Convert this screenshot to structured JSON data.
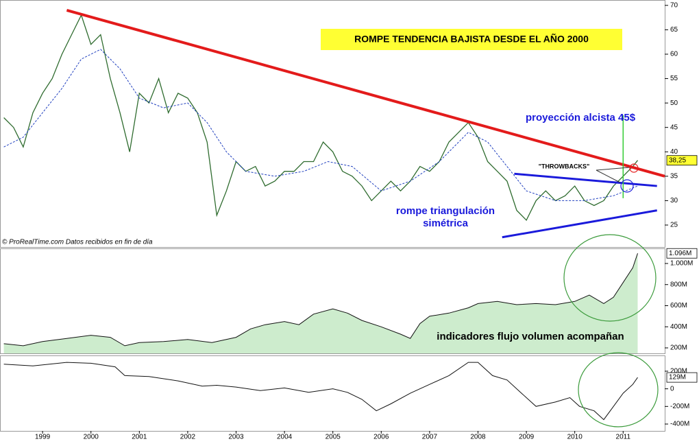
{
  "chart_data": [
    {
      "type": "line",
      "title": "ROMPE TENDENCIA BAJISTA DESDE EL AÑO 2000",
      "source": "© ProRealTime.com  Datos recibidos en fin de día",
      "xlim": [
        1998.12,
        2011.86
      ],
      "ylim": [
        20.5,
        71.1
      ],
      "yticks": [
        25,
        30,
        35,
        40,
        45,
        50,
        55,
        60,
        65,
        70
      ],
      "last_value": {
        "value": 38.25,
        "label": "38,25"
      },
      "series": [
        {
          "color": "#2e6b2e",
          "x": [
            1998.2,
            1998.4,
            1998.6,
            1998.8,
            1999.0,
            1999.2,
            1999.4,
            1999.6,
            1999.8,
            2000.0,
            2000.2,
            2000.4,
            2000.6,
            2000.8,
            2001.0,
            2001.2,
            2001.4,
            2001.6,
            2001.8,
            2002.0,
            2002.2,
            2002.4,
            2002.6,
            2002.8,
            2003.0,
            2003.2,
            2003.4,
            2003.6,
            2003.8,
            2004.0,
            2004.2,
            2004.4,
            2004.6,
            2004.8,
            2005.0,
            2005.2,
            2005.4,
            2005.6,
            2005.8,
            2006.0,
            2006.2,
            2006.4,
            2006.6,
            2006.8,
            2007.0,
            2007.2,
            2007.4,
            2007.6,
            2007.8,
            2008.0,
            2008.2,
            2008.4,
            2008.6,
            2008.8,
            2009.0,
            2009.2,
            2009.4,
            2009.6,
            2009.8,
            2010.0,
            2010.2,
            2010.4,
            2010.6,
            2010.8,
            2011.0,
            2011.2,
            2011.3
          ],
          "values": [
            47,
            45,
            41,
            48,
            52,
            55,
            60,
            64,
            68,
            62,
            64,
            55,
            48,
            40,
            52,
            50,
            55,
            48,
            52,
            51,
            48,
            42,
            27,
            32,
            38,
            36,
            37,
            33,
            34,
            36,
            36,
            38,
            38,
            42,
            40,
            36,
            35,
            33,
            30,
            32,
            34,
            32,
            34,
            37,
            36,
            38,
            42,
            44,
            46,
            43,
            38,
            36,
            34,
            28,
            26,
            30,
            32,
            30,
            31,
            33,
            30,
            29,
            30,
            33,
            35,
            37,
            38.25
          ]
        },
        {
          "color": "#1f3fbf",
          "dash": true,
          "x": [
            1998.2,
            1998.6,
            1999.0,
            1999.4,
            1999.8,
            2000.2,
            2000.6,
            2001.0,
            2001.5,
            2002.0,
            2002.4,
            2002.8,
            2003.2,
            2003.8,
            2004.4,
            2004.9,
            2005.4,
            2006.0,
            2006.6,
            2007.2,
            2007.8,
            2008.2,
            2008.6,
            2009.0,
            2009.6,
            2010.2,
            2010.8,
            2011.3
          ],
          "values": [
            41,
            43,
            48,
            53,
            59,
            61,
            57,
            51,
            49,
            50,
            46,
            40,
            36,
            35,
            36,
            38,
            37,
            32,
            34,
            38,
            44,
            42,
            37,
            32,
            30,
            30,
            31,
            33
          ]
        }
      ],
      "trendlines": [
        {
          "color": "#e31b1b",
          "x": [
            1999.5,
            2011.86
          ],
          "y": [
            69,
            35
          ]
        },
        {
          "color": "#1a1adb",
          "x": [
            2008.75,
            2011.7
          ],
          "y": [
            35.5,
            33
          ]
        },
        {
          "color": "#1a1adb",
          "x": [
            2008.5,
            2011.7
          ],
          "y": [
            22.5,
            28
          ]
        },
        {
          "color": "#33cc33",
          "x": [
            2011.0,
            2011.0
          ],
          "y": [
            30.5,
            47.5
          ]
        }
      ],
      "annotations": [
        "proyección alcista 45$",
        "rompe triangulación",
        "simétrica",
        "\"THROWBACKS\""
      ]
    },
    {
      "type": "area",
      "color": "#cdeccd",
      "line_color": "#111111",
      "annotations": [
        "indicadores flujo volumen acompañan"
      ],
      "xlim": [
        1998.12,
        2011.86
      ],
      "ylim": [
        148,
        1143
      ],
      "yticks": [
        {
          "value": 200,
          "label": "200M"
        },
        {
          "value": 400,
          "label": "400M"
        },
        {
          "value": 600,
          "label": "600M"
        },
        {
          "value": 800,
          "label": "800M"
        },
        {
          "value": 1000,
          "label": "1.000M"
        }
      ],
      "last_value": {
        "value": 1096,
        "label": "1.096M"
      },
      "x": [
        1998.2,
        1998.6,
        1999.0,
        1999.5,
        2000.0,
        2000.4,
        2000.7,
        2001.0,
        2001.5,
        2002.0,
        2002.5,
        2003.0,
        2003.3,
        2003.6,
        2004.0,
        2004.3,
        2004.6,
        2005.0,
        2005.3,
        2005.6,
        2006.0,
        2006.4,
        2006.6,
        2006.8,
        2007.0,
        2007.4,
        2007.8,
        2008.0,
        2008.4,
        2008.8,
        2009.2,
        2009.6,
        2010.0,
        2010.3,
        2010.6,
        2010.8,
        2011.0,
        2011.2,
        2011.3
      ],
      "values": [
        240,
        220,
        260,
        290,
        320,
        300,
        220,
        250,
        260,
        280,
        250,
        300,
        380,
        420,
        450,
        420,
        520,
        570,
        530,
        460,
        400,
        330,
        290,
        430,
        500,
        530,
        580,
        620,
        640,
        610,
        620,
        610,
        640,
        700,
        620,
        680,
        820,
        960,
        1096
      ]
    },
    {
      "type": "line",
      "line_color": "#111111",
      "xlim": [
        1998.12,
        2011.86
      ],
      "ylim": [
        -478,
        379
      ],
      "xticks": [
        1999,
        2000,
        2001,
        2002,
        2003,
        2004,
        2005,
        2006,
        2007,
        2008,
        2009,
        2010,
        2011
      ],
      "yticks": [
        {
          "value": -400,
          "label": "-400M"
        },
        {
          "value": -200,
          "label": "-200M"
        },
        0,
        {
          "value": 200,
          "label": "200M"
        }
      ],
      "last_value": {
        "value": 129,
        "label": "129M"
      },
      "x": [
        1998.2,
        1998.8,
        1999.5,
        2000.0,
        2000.5,
        2000.7,
        2001.2,
        2001.8,
        2002.3,
        2002.6,
        2003.0,
        2003.5,
        2004.0,
        2004.5,
        2005.0,
        2005.3,
        2005.6,
        2005.9,
        2006.2,
        2006.6,
        2007.0,
        2007.4,
        2007.8,
        2008.0,
        2008.3,
        2008.6,
        2008.9,
        2009.2,
        2009.6,
        2009.9,
        2010.1,
        2010.4,
        2010.6,
        2010.8,
        2011.0,
        2011.2,
        2011.3
      ],
      "values": [
        280,
        260,
        300,
        290,
        250,
        150,
        140,
        90,
        30,
        40,
        20,
        -20,
        10,
        -40,
        0,
        -40,
        -120,
        -250,
        -170,
        -50,
        50,
        150,
        300,
        300,
        150,
        100,
        -50,
        -200,
        -150,
        -100,
        -200,
        -250,
        -350,
        -200,
        -50,
        50,
        129
      ]
    }
  ]
}
